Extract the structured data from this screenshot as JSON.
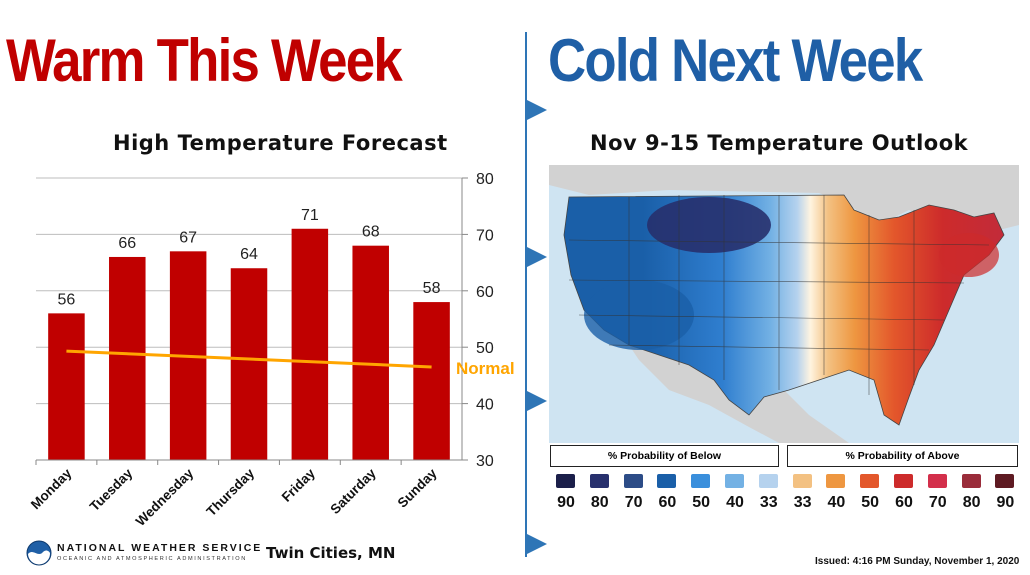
{
  "headlines": {
    "left": "Warm This Week",
    "right": "Cold Next Week"
  },
  "colors": {
    "warm_headline": "#c00000",
    "cold_headline": "#1f5fa6",
    "bar": "#c00000",
    "normal_line": "#ffa500",
    "divider": "#2e75b6"
  },
  "chart_data": {
    "type": "bar",
    "title": "High Temperature Forecast",
    "categories": [
      "Monday",
      "Tuesday",
      "Wednesday",
      "Thursday",
      "Friday",
      "Saturday",
      "Sunday"
    ],
    "values": [
      56,
      66,
      67,
      64,
      71,
      68,
      58
    ],
    "data_labels": [
      "56",
      "66",
      "67",
      "64",
      "71",
      "68",
      "58"
    ],
    "ylim": [
      30,
      80
    ],
    "yticks": [
      30,
      40,
      50,
      60,
      70,
      80
    ],
    "ytick_labels": [
      "30",
      "40",
      "50",
      "60",
      "70",
      "80"
    ],
    "y_axis_side": "right",
    "grid": true,
    "normal_line": {
      "label": "Normal",
      "start": 49.3,
      "end": 46.5
    }
  },
  "map": {
    "title": "Nov 9-15 Temperature Outlook",
    "legend_below_title": "% Probability of Below",
    "legend_above_title": "% Probability of Above",
    "below": [
      {
        "label": "90",
        "color": "#1b1f4a"
      },
      {
        "label": "80",
        "color": "#27306d"
      },
      {
        "label": "70",
        "color": "#2c4c87"
      },
      {
        "label": "60",
        "color": "#1a5fa8"
      },
      {
        "label": "50",
        "color": "#3a8fdc"
      },
      {
        "label": "40",
        "color": "#73b1e4"
      },
      {
        "label": "33",
        "color": "#b5d2ee"
      }
    ],
    "above": [
      {
        "label": "33",
        "color": "#f3c182"
      },
      {
        "label": "40",
        "color": "#ee9741"
      },
      {
        "label": "50",
        "color": "#e3572b"
      },
      {
        "label": "60",
        "color": "#cd2b2b"
      },
      {
        "label": "70",
        "color": "#d32f4b"
      },
      {
        "label": "80",
        "color": "#9a2c3a"
      },
      {
        "label": "90",
        "color": "#5e1a22"
      }
    ]
  },
  "footer": {
    "agency": "NATIONAL WEATHER SERVICE",
    "agency_sub": "OCEANIC AND ATMOSPHERIC ADMINISTRATION",
    "office": "Twin Cities, MN",
    "issued": "Issued: 4:16 PM Sunday, November 1, 2020"
  }
}
